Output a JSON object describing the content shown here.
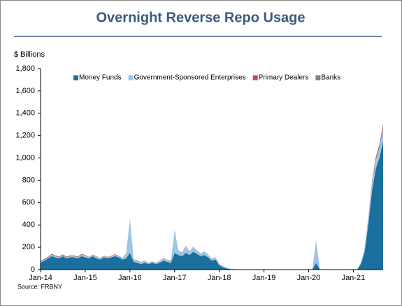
{
  "chart_data": {
    "type": "stacked-area",
    "title": "Overnight Reverse Repo Usage",
    "y_label": "$ Billions",
    "source": "Source: FRBNY",
    "x": [
      "2014-01",
      "2014-02",
      "2014-03",
      "2014-04",
      "2014-05",
      "2014-06",
      "2014-07",
      "2014-08",
      "2014-09",
      "2014-10",
      "2014-11",
      "2014-12",
      "2015-01",
      "2015-02",
      "2015-03",
      "2015-04",
      "2015-05",
      "2015-06",
      "2015-07",
      "2015-08",
      "2015-09",
      "2015-10",
      "2015-11",
      "2015-12",
      "2016-01",
      "2016-02",
      "2016-03",
      "2016-04",
      "2016-05",
      "2016-06",
      "2016-07",
      "2016-08",
      "2016-09",
      "2016-10",
      "2016-11",
      "2016-12",
      "2017-01",
      "2017-02",
      "2017-03",
      "2017-04",
      "2017-05",
      "2017-06",
      "2017-07",
      "2017-08",
      "2017-09",
      "2017-10",
      "2017-11",
      "2017-12",
      "2018-01",
      "2018-02",
      "2018-03",
      "2018-04",
      "2018-05",
      "2018-06",
      "2018-07",
      "2018-08",
      "2018-09",
      "2018-10",
      "2018-11",
      "2018-12",
      "2019-01",
      "2019-02",
      "2019-03",
      "2019-04",
      "2019-05",
      "2019-06",
      "2019-07",
      "2019-08",
      "2019-09",
      "2019-10",
      "2019-11",
      "2019-12",
      "2020-01",
      "2020-02",
      "2020-03",
      "2020-04",
      "2020-05",
      "2020-06",
      "2020-07",
      "2020-08",
      "2020-09",
      "2020-10",
      "2020-11",
      "2020-12",
      "2021-01",
      "2021-02",
      "2021-03",
      "2021-04",
      "2021-05",
      "2021-06",
      "2021-07",
      "2021-08",
      "2021-09"
    ],
    "series": [
      {
        "name": "Money Funds",
        "color": "#1a6f9c",
        "values": [
          60,
          80,
          100,
          120,
          110,
          100,
          120,
          100,
          110,
          110,
          100,
          120,
          110,
          100,
          120,
          100,
          90,
          110,
          100,
          110,
          120,
          110,
          90,
          100,
          150,
          70,
          60,
          50,
          60,
          50,
          60,
          50,
          60,
          80,
          70,
          60,
          150,
          130,
          120,
          150,
          130,
          160,
          140,
          120,
          130,
          110,
          80,
          90,
          40,
          20,
          10,
          5,
          3,
          2,
          2,
          2,
          2,
          2,
          2,
          2,
          2,
          2,
          2,
          2,
          2,
          2,
          2,
          2,
          2,
          2,
          2,
          2,
          2,
          2,
          60,
          3,
          1,
          0,
          0,
          0,
          0,
          0,
          0,
          0,
          0,
          0,
          50,
          150,
          400,
          700,
          900,
          1000,
          1150
        ]
      },
      {
        "name": "Government-Sponsored Enterprises",
        "color": "#9cc6e4",
        "values": [
          10,
          10,
          10,
          15,
          10,
          10,
          10,
          10,
          10,
          10,
          10,
          15,
          15,
          10,
          10,
          15,
          10,
          10,
          10,
          10,
          15,
          10,
          10,
          40,
          300,
          20,
          20,
          15,
          15,
          10,
          10,
          10,
          15,
          20,
          15,
          20,
          200,
          40,
          30,
          60,
          30,
          40,
          30,
          20,
          30,
          20,
          15,
          15,
          10,
          10,
          5,
          3,
          2,
          1,
          1,
          1,
          1,
          1,
          1,
          1,
          1,
          1,
          1,
          1,
          1,
          1,
          1,
          1,
          1,
          1,
          1,
          1,
          1,
          1,
          200,
          1,
          0,
          0,
          0,
          0,
          0,
          0,
          0,
          0,
          0,
          0,
          10,
          30,
          50,
          70,
          80,
          90,
          120
        ]
      },
      {
        "name": "Primary Dealers",
        "color": "#c0504d",
        "values": [
          5,
          5,
          5,
          5,
          5,
          5,
          5,
          5,
          5,
          5,
          5,
          5,
          3,
          3,
          3,
          3,
          3,
          3,
          3,
          3,
          3,
          3,
          3,
          3,
          2,
          2,
          2,
          2,
          2,
          2,
          2,
          2,
          2,
          2,
          2,
          2,
          2,
          2,
          2,
          2,
          2,
          2,
          2,
          2,
          2,
          2,
          2,
          2,
          1,
          1,
          0,
          0,
          0,
          0,
          0,
          0,
          0,
          0,
          0,
          0,
          0,
          0,
          0,
          0,
          0,
          0,
          0,
          0,
          0,
          0,
          0,
          0,
          0,
          0,
          0,
          0,
          0,
          0,
          0,
          0,
          0,
          0,
          0,
          0,
          0,
          0,
          0,
          5,
          10,
          15,
          20,
          25,
          30
        ]
      },
      {
        "name": "Banks",
        "color": "#7f7f86",
        "values": [
          2,
          2,
          2,
          2,
          2,
          2,
          2,
          2,
          2,
          2,
          2,
          2,
          1,
          1,
          1,
          1,
          1,
          1,
          1,
          1,
          1,
          1,
          1,
          1,
          1,
          1,
          1,
          1,
          1,
          1,
          1,
          1,
          1,
          1,
          1,
          1,
          1,
          1,
          1,
          1,
          1,
          1,
          1,
          1,
          1,
          1,
          1,
          1,
          0,
          0,
          0,
          0,
          0,
          0,
          0,
          0,
          0,
          0,
          0,
          0,
          0,
          0,
          0,
          0,
          0,
          0,
          0,
          0,
          0,
          0,
          0,
          0,
          0,
          0,
          0,
          0,
          0,
          0,
          0,
          0,
          0,
          0,
          0,
          0,
          0,
          0,
          0,
          0,
          0,
          0,
          5,
          5,
          5
        ]
      }
    ],
    "xlim": [
      "2014-01",
      "2021-09"
    ],
    "xticks": [
      {
        "value": "2014-01",
        "label": "Jan-14"
      },
      {
        "value": "2015-01",
        "label": "Jan-15"
      },
      {
        "value": "2016-01",
        "label": "Jan-16"
      },
      {
        "value": "2017-01",
        "label": "Jan-17"
      },
      {
        "value": "2018-01",
        "label": "Jan-18"
      },
      {
        "value": "2019-01",
        "label": "Jan-19"
      },
      {
        "value": "2020-01",
        "label": "Jan-20"
      },
      {
        "value": "2021-01",
        "label": "Jan-21"
      }
    ],
    "ylim": [
      0,
      1800
    ],
    "yticks": [
      0,
      200,
      400,
      600,
      800,
      {
        "value": 1000,
        "label": "1,000"
      },
      {
        "value": 1200,
        "label": "1,200"
      },
      {
        "value": 1400,
        "label": "1,400"
      },
      {
        "value": 1600,
        "label": "1,600"
      },
      {
        "value": 1800,
        "label": "1,800"
      }
    ],
    "legend": "top"
  }
}
